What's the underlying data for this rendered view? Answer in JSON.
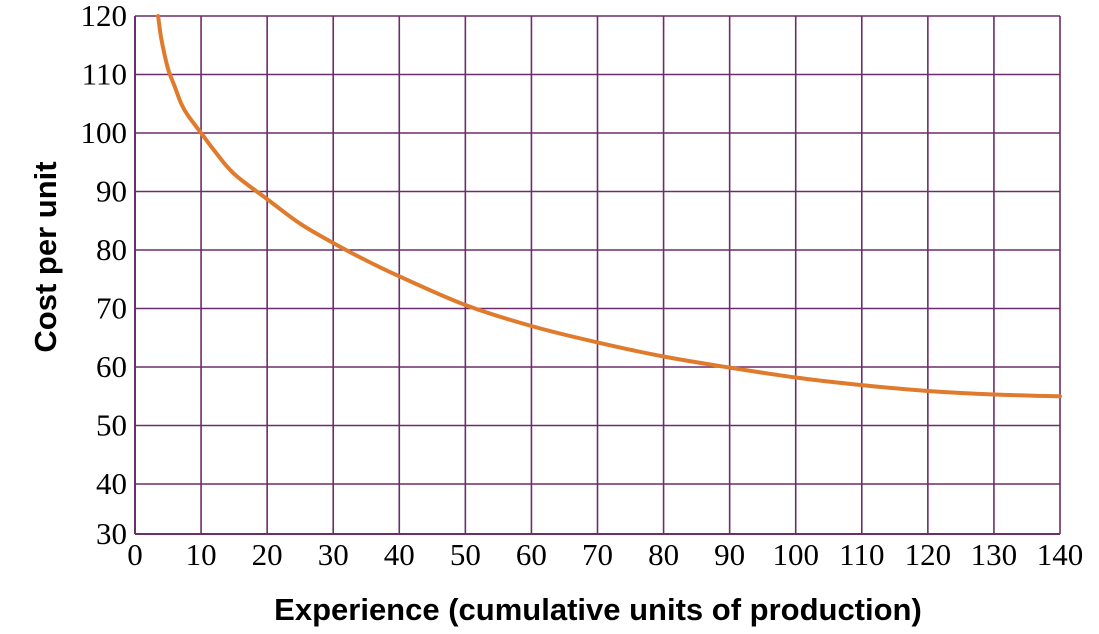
{
  "chart_data": {
    "type": "line",
    "title": "",
    "xlabel": "Experience (cumulative units of production)",
    "ylabel": "Cost per unit",
    "xlim": [
      0,
      140
    ],
    "ylim": [
      30,
      120
    ],
    "x_ticks": [
      "0",
      "10",
      "20",
      "30",
      "40",
      "50",
      "60",
      "70",
      "80",
      "90",
      "100",
      "110",
      "120",
      "130",
      "140"
    ],
    "y_ticks": [
      "30",
      "40",
      "50",
      "60",
      "70",
      "80",
      "90",
      "100",
      "110",
      "120"
    ],
    "grid": true,
    "series": [
      {
        "name": "",
        "color": "#e07a2c",
        "x": [
          3.5,
          4,
          5,
          6,
          7,
          8,
          10,
          12,
          15,
          20,
          25,
          30,
          35,
          40,
          50,
          60,
          70,
          80,
          90,
          100,
          110,
          120,
          130,
          140
        ],
        "y": [
          120,
          116,
          111,
          108,
          105,
          103,
          100,
          97,
          93,
          88.7,
          84.5,
          81.2,
          78.2,
          75.5,
          70.6,
          67,
          64.2,
          61.8,
          59.9,
          58.2,
          56.9,
          55.9,
          55.3,
          55
        ]
      }
    ]
  },
  "colors": {
    "grid": "#6b2d6b",
    "curve": "#e07a2c"
  }
}
